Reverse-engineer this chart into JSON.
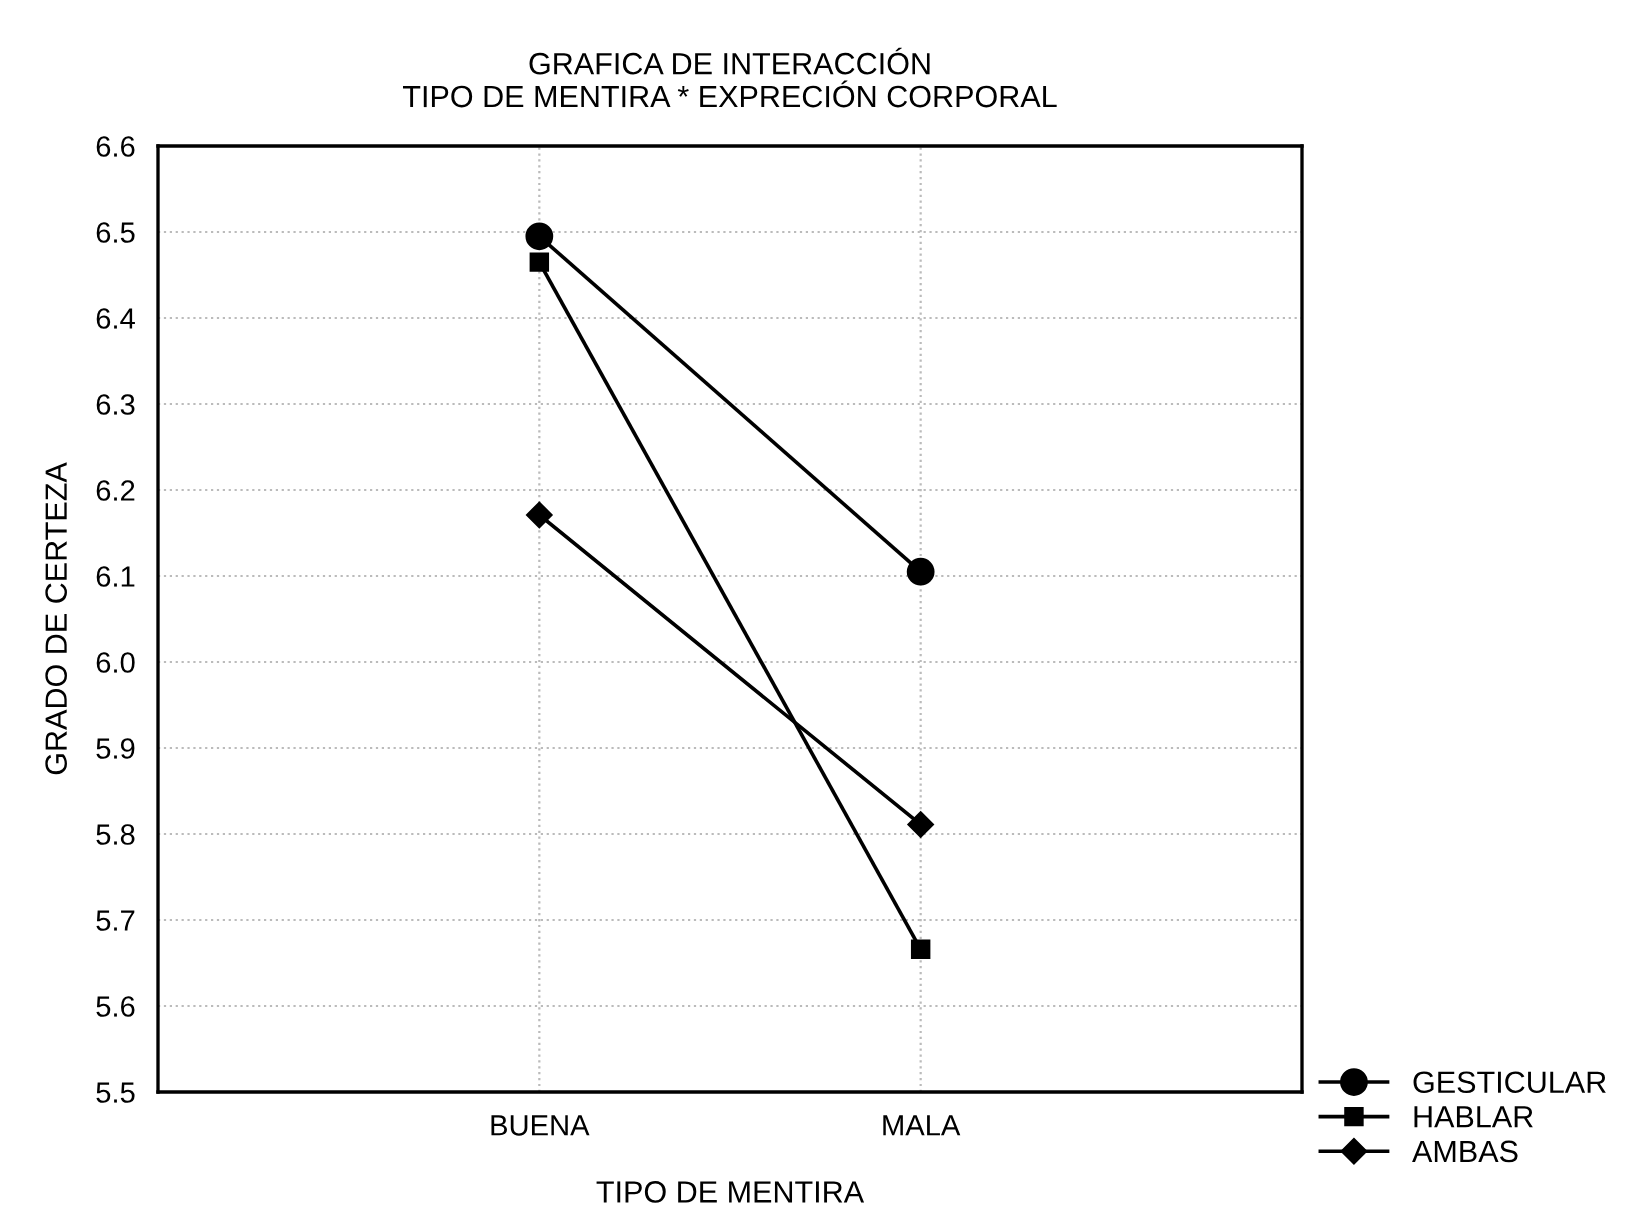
{
  "chart_data": {
    "type": "line",
    "title": "GRAFICA DE INTERACCIÓN\nTIPO DE MENTIRA * EXPRECIÓN CORPORAL",
    "xlabel": "TIPO DE MENTIRA",
    "ylabel": "GRADO DE CERTEZA",
    "categories": [
      "BUENA",
      "MALA"
    ],
    "series": [
      {
        "name": "GESTICULAR",
        "color": "#000000",
        "marker": "circle",
        "values": [
          6.495,
          6.105
        ]
      },
      {
        "name": "HABLAR",
        "color": "#000000",
        "marker": "square",
        "values": [
          6.465,
          5.666
        ]
      },
      {
        "name": "AMBAS",
        "color": "#000000",
        "marker": "diamond",
        "values": [
          6.171,
          5.811
        ]
      }
    ],
    "ylim": [
      5.5,
      6.6
    ],
    "yticks": [
      {
        "value": 5.5,
        "label": "5.5"
      },
      {
        "value": 5.6,
        "label": "5.6"
      },
      {
        "value": 5.7,
        "label": "5.7"
      },
      {
        "value": 5.8,
        "label": "5.8"
      },
      {
        "value": 5.9,
        "label": "5.9"
      },
      {
        "value": 6.0,
        "label": "6.0"
      },
      {
        "value": 6.1,
        "label": "6.1"
      },
      {
        "value": 6.2,
        "label": "6.2"
      },
      {
        "value": 6.3,
        "label": "6.3"
      },
      {
        "value": 6.4,
        "label": "6.4"
      },
      {
        "value": 6.5,
        "label": "6.5"
      },
      {
        "value": 6.6,
        "label": "6.6"
      }
    ],
    "grid": true,
    "legend": "bottom right",
    "line_style": "solid"
  }
}
